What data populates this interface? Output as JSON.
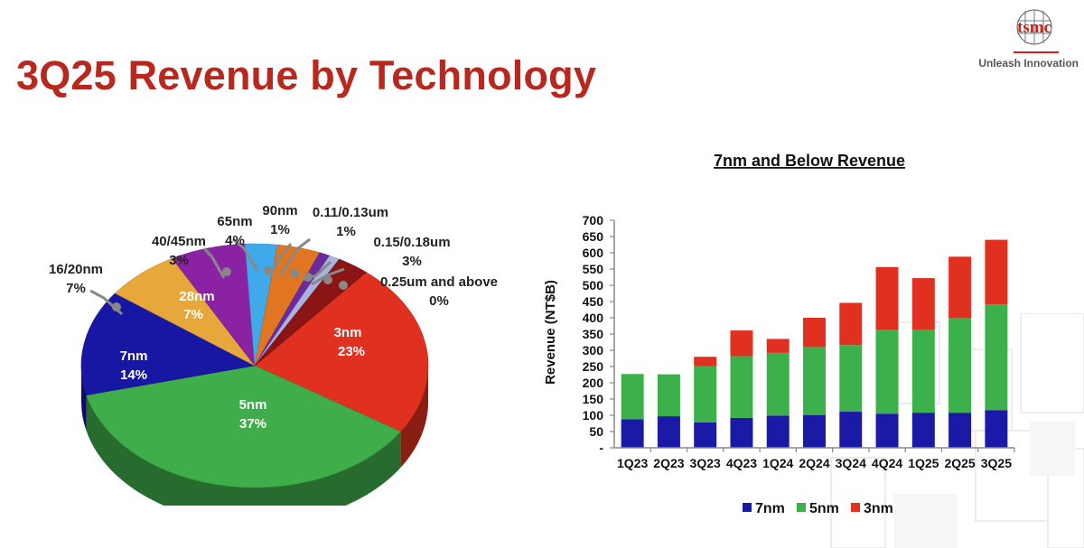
{
  "header": {
    "title": "3Q25 Revenue by Technology",
    "logo_text": "tsmc",
    "tagline": "Unleash Innovation"
  },
  "colors": {
    "title": "#b8281e",
    "7nm": "#1a1aa6",
    "5nm": "#3cb04a",
    "3nm": "#e03020"
  },
  "chart_data": [
    {
      "type": "pie",
      "title": "",
      "slices": [
        {
          "label": "3nm",
          "pct_label": "23%",
          "value": 23,
          "color": "#e0301f"
        },
        {
          "label": "5nm",
          "pct_label": "37%",
          "value": 37,
          "color": "#3fae4a"
        },
        {
          "label": "7nm",
          "pct_label": "14%",
          "value": 14,
          "color": "#1717a3"
        },
        {
          "label": "16/20nm",
          "pct_label": "7%",
          "value": 7,
          "color": "#e6a83a"
        },
        {
          "label": "28nm",
          "pct_label": "7%",
          "value": 7,
          "color": "#8a22a3"
        },
        {
          "label": "40/45nm",
          "pct_label": "3%",
          "value": 3,
          "color": "#3fa9ea"
        },
        {
          "label": "65nm",
          "pct_label": "4%",
          "value": 4,
          "color": "#e07522"
        },
        {
          "label": "90nm",
          "pct_label": "1%",
          "value": 1,
          "color": "#6b2aa0"
        },
        {
          "label": "0.11/0.13um",
          "pct_label": "1%",
          "value": 1,
          "color": "#a9b3df"
        },
        {
          "label": "0.15/0.18um",
          "pct_label": "3%",
          "value": 3,
          "color": "#8b1414"
        },
        {
          "label": "0.25um and above",
          "pct_label": "0%",
          "value": 0,
          "color": "#f0b0a0"
        }
      ]
    },
    {
      "type": "bar",
      "stacked": true,
      "title": "7nm and Below Revenue",
      "ylabel": "Revenue (NT$B)",
      "xlabel": "",
      "ylim": [
        0,
        700
      ],
      "yticks": [
        0,
        50,
        100,
        150,
        200,
        250,
        300,
        350,
        400,
        450,
        500,
        550,
        600,
        650,
        700
      ],
      "ytick_labels": [
        "-",
        "50",
        "100",
        "150",
        "200",
        "250",
        "300",
        "350",
        "400",
        "450",
        "500",
        "550",
        "600",
        "650",
        "700"
      ],
      "categories": [
        "1Q23",
        "2Q23",
        "3Q23",
        "4Q23",
        "1Q24",
        "2Q24",
        "3Q24",
        "4Q24",
        "1Q25",
        "2Q25",
        "3Q25"
      ],
      "series": [
        {
          "name": "7nm",
          "color": "#1a1aa6",
          "values": [
            88,
            97,
            78,
            92,
            99,
            101,
            111,
            105,
            108,
            108,
            116
          ]
        },
        {
          "name": "5nm",
          "color": "#3cb04a",
          "values": [
            139,
            129,
            173,
            190,
            193,
            209,
            205,
            258,
            256,
            291,
            325
          ]
        },
        {
          "name": "3nm",
          "color": "#e03020",
          "values": [
            0,
            0,
            29,
            79,
            43,
            90,
            130,
            193,
            158,
            189,
            199
          ]
        }
      ],
      "legend_position": "bottom"
    }
  ]
}
